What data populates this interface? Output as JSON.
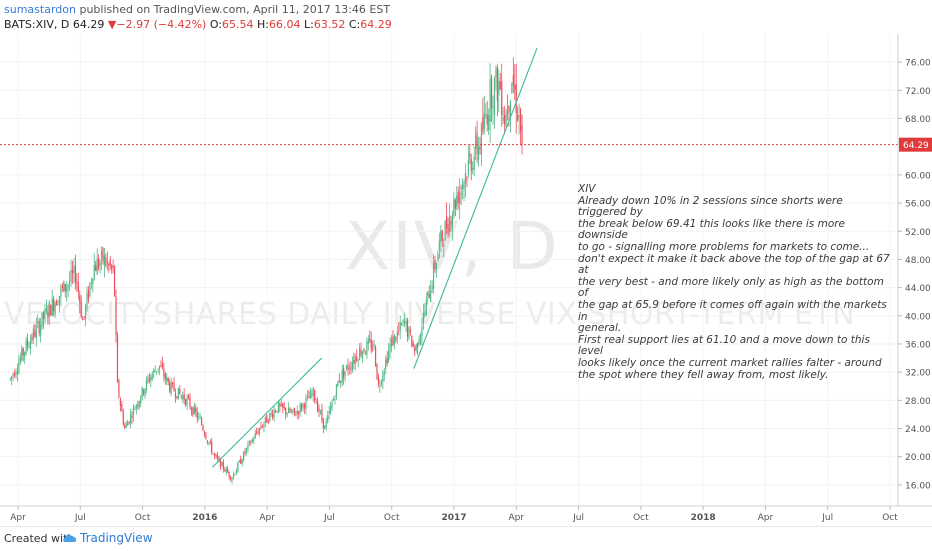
{
  "header": {
    "author": "sumastardon",
    "published_text": "published on TradingView.com, April 11, 2017 13:46 EST",
    "symbol": "BATS:XIV, D",
    "last": "64.29",
    "change": "−2.97 (−4.42%)",
    "o_label": "O:",
    "o_value": "65.54",
    "h_label": "H:",
    "h_value": "66.04",
    "l_label": "L:",
    "l_value": "63.52",
    "c_label": "C:",
    "c_value": "64.29"
  },
  "watermark": {
    "ticker": "XIV, D",
    "name": "VELOCITYSHARES DAILY INVERSE VIX SHORT-TERM ETN"
  },
  "annotation": {
    "lines": [
      "XIV",
      "Already down 10% in 2 sessions since shorts were triggered by",
      "the break below 69.41 this looks like there is more downside",
      "to go - signalling more problems for markets to come...",
      "don't expect it make it back above the top of the gap at 67 at",
      "the very best - and more likely only as high as the bottom of",
      "the gap at 65.9 before it comes off again with the markets in",
      "general.",
      "First real support lies at 61.10 and a move down to this level",
      "looks likely once the current market rallies falter -  around",
      "the spot where they fell away from, most likely."
    ]
  },
  "footer": {
    "created_with": "Created with",
    "brand": "TradingView"
  },
  "colors": {
    "up": "#53b987",
    "down": "#eb4d5c",
    "trendline": "#3cb99a",
    "price_line": "#e03a3a"
  },
  "chart_data": {
    "type": "candlestick",
    "symbol": "BATS:XIV",
    "interval": "D",
    "x_tick_labels": [
      "Apr",
      "Jul",
      "Oct",
      "2016",
      "Apr",
      "Jul",
      "Oct",
      "2017",
      "Apr",
      "Jul",
      "Oct",
      "2018",
      "Apr",
      "Jul",
      "Oct"
    ],
    "x_tick_months": [
      "2015-04",
      "2015-07",
      "2015-10",
      "2016-01",
      "2016-04",
      "2016-07",
      "2016-10",
      "2017-01",
      "2017-04",
      "2017-07",
      "2017-10",
      "2018-01",
      "2018-04",
      "2018-07",
      "2018-10"
    ],
    "y_ticks": [
      16.0,
      20.0,
      24.0,
      28.0,
      32.0,
      36.0,
      40.0,
      44.0,
      48.0,
      52.0,
      56.0,
      60.0,
      64.29,
      68.0,
      72.0,
      76.0
    ],
    "y_range": [
      13.0,
      80.0
    ],
    "last_price": 64.29,
    "path": [
      [
        "2015-03-20",
        31
      ],
      [
        "2015-04-15",
        36
      ],
      [
        "2015-05-10",
        40
      ],
      [
        "2015-05-31",
        43
      ],
      [
        "2015-06-25",
        46
      ],
      [
        "2015-07-05",
        39
      ],
      [
        "2015-07-20",
        47
      ],
      [
        "2015-08-05",
        48
      ],
      [
        "2015-08-20",
        46
      ],
      [
        "2015-08-25",
        30
      ],
      [
        "2015-09-05",
        24
      ],
      [
        "2015-09-20",
        27
      ],
      [
        "2015-10-10",
        31
      ],
      [
        "2015-10-25",
        33
      ],
      [
        "2015-11-10",
        30
      ],
      [
        "2015-12-05",
        28
      ],
      [
        "2015-12-25",
        25
      ],
      [
        "2016-01-15",
        20
      ],
      [
        "2016-02-10",
        17
      ],
      [
        "2016-03-01",
        21
      ],
      [
        "2016-03-20",
        24
      ],
      [
        "2016-04-15",
        27
      ],
      [
        "2016-05-10",
        26
      ],
      [
        "2016-06-08",
        29
      ],
      [
        "2016-06-25",
        24
      ],
      [
        "2016-07-15",
        31
      ],
      [
        "2016-08-15",
        35
      ],
      [
        "2016-09-05",
        36
      ],
      [
        "2016-09-12",
        30
      ],
      [
        "2016-09-30",
        36
      ],
      [
        "2016-10-20",
        39
      ],
      [
        "2016-11-05",
        35
      ],
      [
        "2016-11-20",
        41
      ],
      [
        "2016-12-10",
        50
      ],
      [
        "2017-01-05",
        57
      ],
      [
        "2017-01-25",
        62
      ],
      [
        "2017-02-10",
        65
      ],
      [
        "2017-02-25",
        72
      ],
      [
        "2017-03-07",
        73
      ],
      [
        "2017-03-15",
        68
      ],
      [
        "2017-03-25",
        74
      ],
      [
        "2017-04-02",
        70
      ],
      [
        "2017-04-06",
        67.5
      ],
      [
        "2017-04-11",
        64.29
      ]
    ],
    "trendlines": [
      {
        "start": [
          "2016-01-12",
          18.5
        ],
        "end": [
          "2016-06-20",
          34.0
        ]
      },
      {
        "start": [
          "2016-11-03",
          32.5
        ],
        "end": [
          "2017-05-01",
          78.0
        ]
      }
    ]
  }
}
